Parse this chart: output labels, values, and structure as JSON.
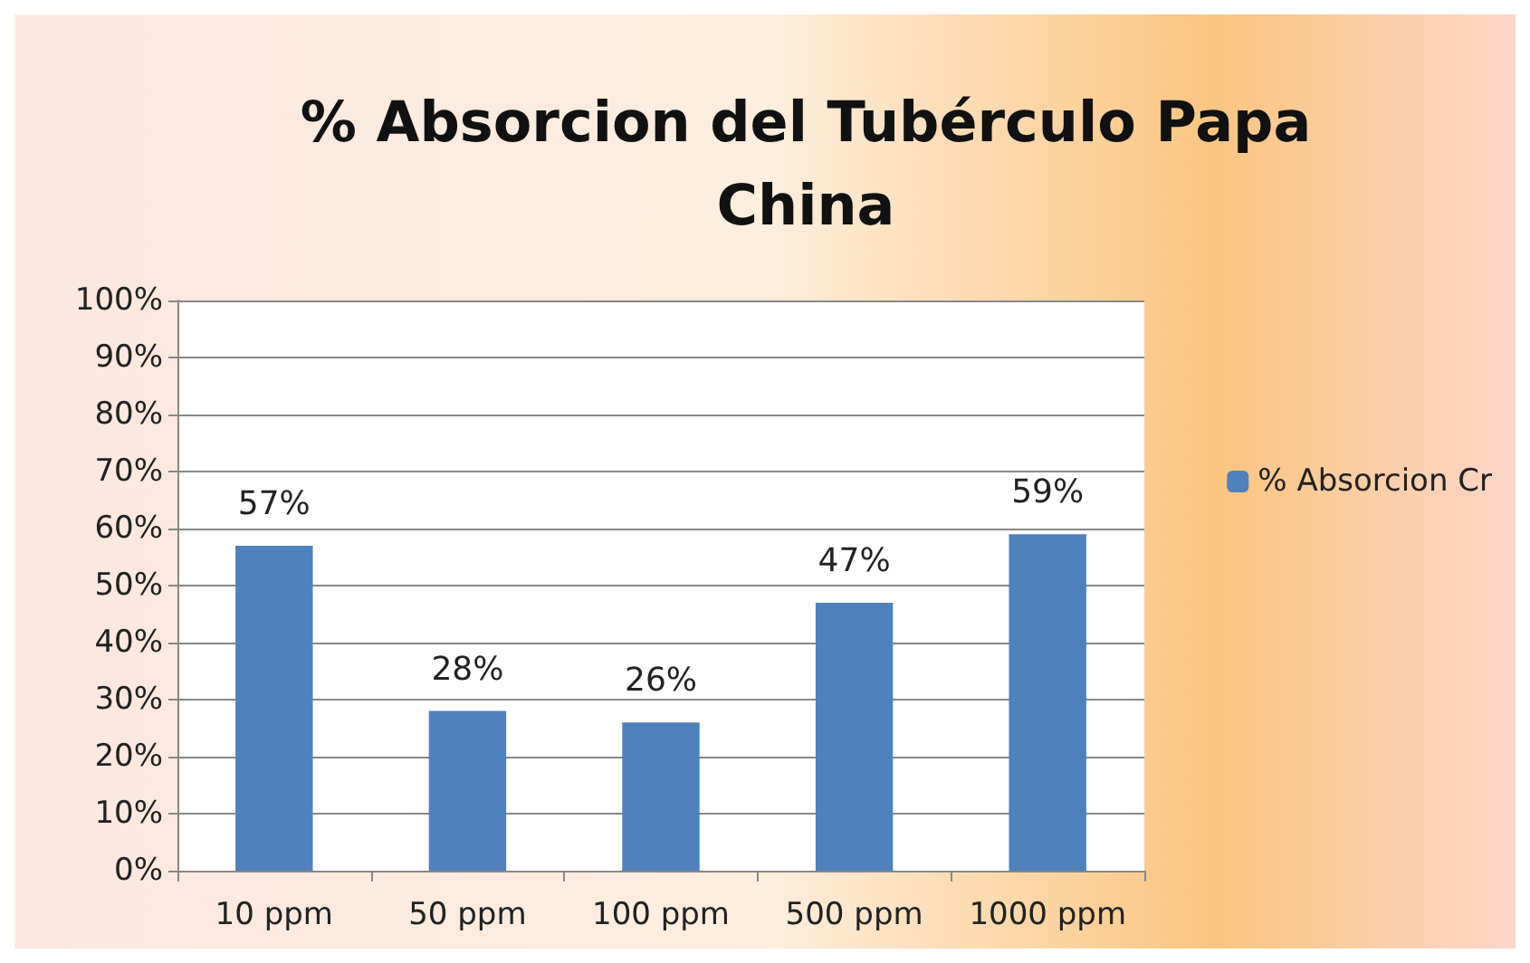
{
  "chart_data": {
    "type": "bar",
    "title": "% Absorcion del Tubérculo Papa\nChina",
    "categories": [
      "10 ppm",
      "50 ppm",
      "100 ppm",
      "500 ppm",
      "1000 ppm"
    ],
    "series": [
      {
        "name": "% Absorcion Cr",
        "color": "#4f81bd",
        "values": [
          57,
          28,
          26,
          47,
          59
        ],
        "value_labels": [
          "57%",
          "28%",
          "26%",
          "47%",
          "59%"
        ]
      }
    ],
    "ylim": [
      0,
      100
    ],
    "yticks": [
      {
        "value": 0,
        "label": "0%"
      },
      {
        "value": 10,
        "label": "10%"
      },
      {
        "value": 20,
        "label": "20%"
      },
      {
        "value": 30,
        "label": "30%"
      },
      {
        "value": 40,
        "label": "40%"
      },
      {
        "value": 50,
        "label": "50%"
      },
      {
        "value": 60,
        "label": "60%"
      },
      {
        "value": 70,
        "label": "70%"
      },
      {
        "value": 80,
        "label": "80%"
      },
      {
        "value": 90,
        "label": "90%"
      },
      {
        "value": 100,
        "label": "100%"
      }
    ],
    "grid": "y",
    "legend": "right"
  }
}
